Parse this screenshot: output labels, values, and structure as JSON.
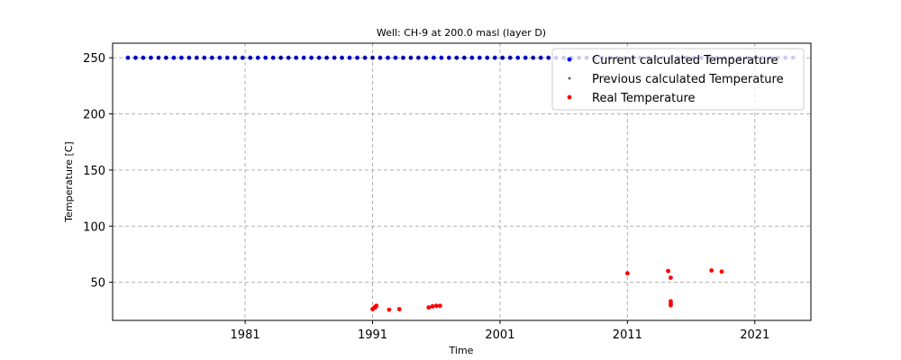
{
  "chart_data": {
    "type": "scatter",
    "title": "Well: CH-9 at 200.0 masl (layer D)",
    "xlabel": "Time",
    "ylabel": "Temperature [C]",
    "xlim": [
      1970.6,
      2025.4
    ],
    "ylim": [
      16,
      263
    ],
    "x_ticks": [
      1981,
      1991,
      2001,
      2011,
      2021
    ],
    "y_ticks": [
      50,
      100,
      150,
      200,
      250
    ],
    "grid": true,
    "legend_position": "top-right",
    "series": [
      {
        "name": "Current calculated Temperature",
        "color": "#0000ff",
        "marker": "circle",
        "x_start": 1971.8,
        "x_end": 2024.2,
        "x_step": 0.6,
        "y": 250
      },
      {
        "name": "Previous calculated Temperature",
        "color": "#000000",
        "marker": "plus",
        "x_start": 1971.8,
        "x_end": 2024.2,
        "x_step": 0.6,
        "y": 250
      },
      {
        "name": "Real Temperature",
        "color": "#ff0000",
        "marker": "circle",
        "points": [
          [
            1991.0,
            26
          ],
          [
            1991.1,
            27
          ],
          [
            1991.2,
            28
          ],
          [
            1991.3,
            29
          ],
          [
            1991.2,
            27.5
          ],
          [
            1992.3,
            25.5
          ],
          [
            1993.1,
            26
          ],
          [
            1995.4,
            27.5
          ],
          [
            1995.7,
            28.5
          ],
          [
            1996.0,
            29
          ],
          [
            1996.3,
            29
          ],
          [
            2011.0,
            58
          ],
          [
            2014.2,
            60
          ],
          [
            2014.4,
            54
          ],
          [
            2014.4,
            33
          ],
          [
            2014.4,
            31
          ],
          [
            2014.4,
            29.5
          ],
          [
            2017.6,
            60.5
          ],
          [
            2018.4,
            59.5
          ]
        ]
      }
    ]
  }
}
